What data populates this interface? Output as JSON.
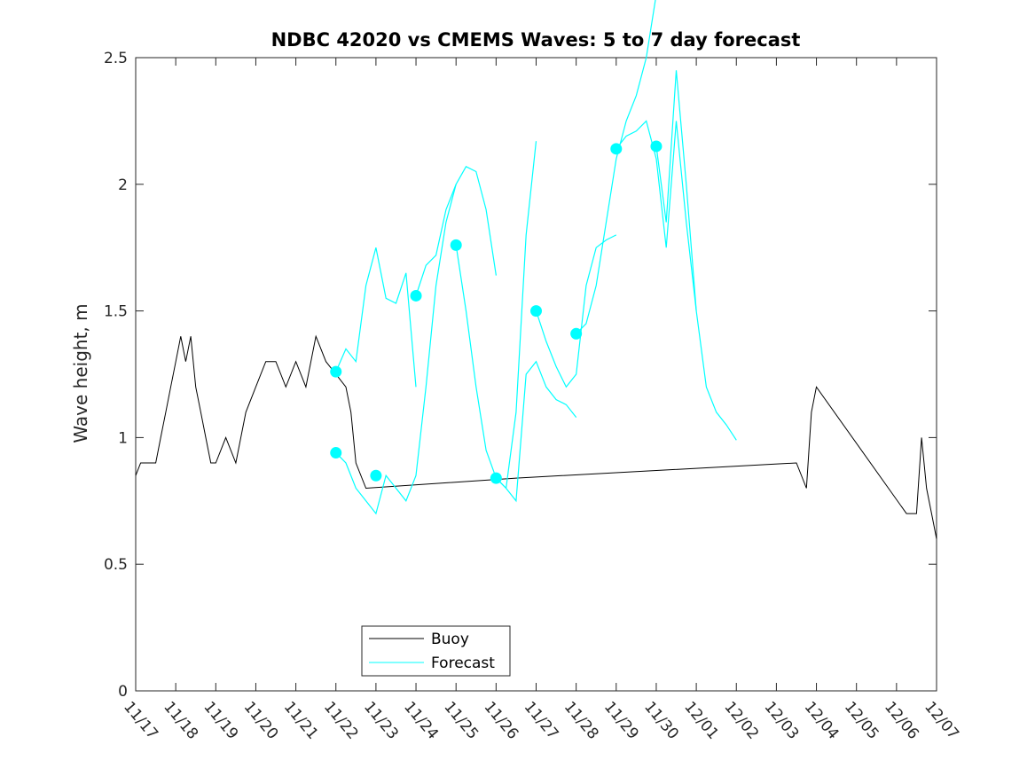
{
  "chart_data": {
    "type": "line",
    "title": "NDBC 42020 vs CMEMS Waves: 5 to 7 day forecast",
    "xlabel": "",
    "ylabel": "Wave height, m",
    "xlim": [
      "11/17",
      "12/07"
    ],
    "ylim": [
      0,
      2.5
    ],
    "x_ticks": [
      "11/17",
      "11/18",
      "11/19",
      "11/20",
      "11/21",
      "11/22",
      "11/23",
      "11/24",
      "11/25",
      "11/26",
      "11/27",
      "11/28",
      "11/29",
      "11/30",
      "12/01",
      "12/02",
      "12/03",
      "12/04",
      "12/05",
      "12/06",
      "12/07"
    ],
    "y_ticks": [
      "0",
      "0.5",
      "1",
      "1.5",
      "2",
      "2.5"
    ],
    "grid": false,
    "legend_position": "bottom-center",
    "colors": {
      "buoy": "#000000",
      "forecast": "#00FFFF",
      "axis": "#262626"
    },
    "series": [
      {
        "name": "Buoy",
        "x": [
          "11/17 00:00",
          "11/17 03:00",
          "11/17 06:00",
          "11/17 12:00",
          "11/17 15:00",
          "11/17 18:00",
          "11/17 21:00",
          "11/18 00:00",
          "11/18 03:00",
          "11/18 06:00",
          "11/18 09:00",
          "11/18 12:00",
          "11/18 15:00",
          "11/18 18:00",
          "11/18 21:00",
          "11/19 00:00",
          "11/19 06:00",
          "11/19 12:00",
          "11/19 18:00",
          "11/20 00:00",
          "11/20 06:00",
          "11/20 12:00",
          "11/20 18:00",
          "11/21 00:00",
          "11/21 06:00",
          "11/21 12:00",
          "11/21 18:00",
          "11/22 00:00",
          "11/22 06:00",
          "11/22 09:00",
          "11/22 12:00",
          "11/22 18:00",
          "11/26 12:00",
          "12/03 12:00",
          "12/03 18:00",
          "12/03 21:00",
          "12/04 00:00",
          "12/06 06:00",
          "12/06 12:00",
          "12/06 15:00",
          "12/06 18:00",
          "12/06 21:00",
          "12/07 00:00"
        ],
        "y": [
          0.85,
          0.9,
          0.9,
          0.9,
          1.0,
          1.1,
          1.2,
          1.3,
          1.4,
          1.3,
          1.4,
          1.2,
          1.1,
          1.0,
          0.9,
          0.9,
          1.0,
          0.9,
          1.1,
          1.2,
          1.3,
          1.3,
          1.2,
          1.3,
          1.2,
          1.4,
          1.3,
          1.25,
          1.2,
          1.1,
          0.9,
          0.8,
          0.84,
          0.9,
          0.8,
          1.1,
          1.2,
          0.7,
          0.7,
          1.0,
          0.8,
          0.7,
          0.6
        ]
      },
      {
        "name": "Forecast",
        "segments": [
          {
            "x": [
              "11/22 00:00",
              "11/22 06:00",
              "11/22 12:00",
              "11/22 18:00",
              "11/23 00:00",
              "11/23 06:00",
              "11/23 12:00",
              "11/23 18:00",
              "11/24 00:00"
            ],
            "y": [
              1.26,
              1.35,
              1.3,
              1.6,
              1.75,
              1.55,
              1.53,
              1.65,
              1.2
            ]
          },
          {
            "x": [
              "11/22 00:00",
              "11/22 06:00",
              "11/22 12:00",
              "11/22 18:00",
              "11/23 00:00",
              "11/23 06:00",
              "11/23 12:00",
              "11/23 18:00",
              "11/24 00:00",
              "11/24 06:00",
              "11/24 12:00",
              "11/24 18:00",
              "11/25 00:00"
            ],
            "y": [
              0.94,
              0.9,
              0.8,
              0.75,
              0.7,
              0.85,
              0.8,
              0.75,
              0.85,
              1.2,
              1.6,
              1.85,
              2.0
            ]
          },
          {
            "x": [
              "11/24 00:00",
              "11/24 06:00",
              "11/24 12:00",
              "11/24 18:00",
              "11/25 00:00",
              "11/25 06:00",
              "11/25 12:00",
              "11/25 18:00",
              "11/26 00:00"
            ],
            "y": [
              1.56,
              1.68,
              1.72,
              1.9,
              2.0,
              2.07,
              2.05,
              1.9,
              1.64
            ]
          },
          {
            "x": [
              "11/25 00:00",
              "11/25 06:00",
              "11/25 12:00",
              "11/25 18:00",
              "11/26 00:00",
              "11/26 06:00",
              "11/26 12:00",
              "11/26 18:00",
              "11/27 00:00"
            ],
            "y": [
              1.76,
              1.5,
              1.2,
              0.95,
              0.84,
              0.8,
              1.1,
              1.8,
              2.17
            ]
          },
          {
            "x": [
              "11/26 00:00",
              "11/26 06:00",
              "11/26 12:00",
              "11/26 18:00",
              "11/27 00:00",
              "11/27 06:00",
              "11/27 12:00",
              "11/27 18:00",
              "11/28 00:00"
            ],
            "y": [
              0.84,
              0.8,
              0.75,
              1.25,
              1.3,
              1.2,
              1.15,
              1.13,
              1.08
            ]
          },
          {
            "x": [
              "11/27 00:00",
              "11/27 06:00",
              "11/27 12:00",
              "11/27 18:00",
              "11/28 00:00",
              "11/28 06:00",
              "11/28 12:00",
              "11/28 18:00",
              "11/29 00:00"
            ],
            "y": [
              1.5,
              1.38,
              1.28,
              1.2,
              1.25,
              1.6,
              1.75,
              1.78,
              1.8
            ]
          },
          {
            "x": [
              "11/28 00:00",
              "11/28 06:00",
              "11/28 12:00",
              "11/28 18:00",
              "11/29 00:00",
              "11/29 06:00",
              "11/29 12:00",
              "11/29 18:00",
              "11/30 00:00"
            ],
            "y": [
              1.41,
              1.45,
              1.6,
              1.85,
              2.1,
              2.25,
              2.35,
              2.5,
              2.75
            ]
          },
          {
            "x": [
              "11/29 00:00",
              "11/29 06:00",
              "11/29 12:00",
              "11/29 18:00",
              "11/30 00:00",
              "11/30 06:00",
              "11/30 12:00",
              "11/30 18:00",
              "12/01 00:00"
            ],
            "y": [
              2.14,
              2.19,
              2.21,
              2.25,
              2.1,
              1.75,
              2.25,
              1.85,
              1.5
            ]
          },
          {
            "x": [
              "11/30 00:00",
              "11/30 06:00",
              "11/30 12:00",
              "11/30 18:00",
              "12/01 00:00",
              "12/01 06:00",
              "12/01 12:00",
              "12/01 18:00",
              "12/02 00:00"
            ],
            "y": [
              2.15,
              1.85,
              2.45,
              2.0,
              1.5,
              1.2,
              1.1,
              1.05,
              0.99
            ]
          }
        ]
      },
      {
        "name": "Forecast markers",
        "x": [
          "11/22 00:00",
          "11/22 00:00",
          "11/23 00:00",
          "11/24 00:00",
          "11/25 00:00",
          "11/26 00:00",
          "11/27 00:00",
          "11/28 00:00",
          "11/29 00:00",
          "11/30 00:00"
        ],
        "y": [
          1.26,
          0.94,
          0.85,
          1.56,
          1.76,
          0.84,
          1.5,
          1.41,
          2.14,
          2.15
        ]
      }
    ],
    "legend": [
      "Buoy",
      "Forecast"
    ]
  }
}
